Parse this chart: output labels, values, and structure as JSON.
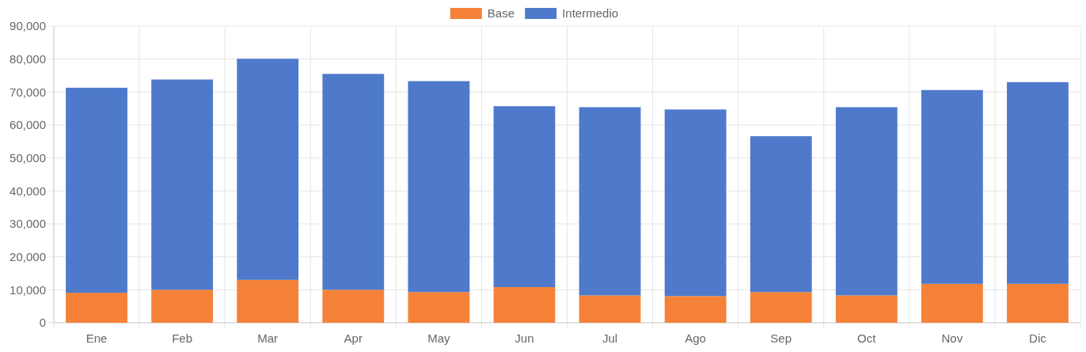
{
  "chart_data": {
    "type": "bar",
    "stacked": true,
    "categories": [
      "Ene",
      "Feb",
      "Mar",
      "Apr",
      "May",
      "Jun",
      "Jul",
      "Ago",
      "Sep",
      "Oct",
      "Nov",
      "Dic"
    ],
    "series": [
      {
        "name": "Base",
        "color": "#f58238",
        "values": [
          9100,
          10000,
          13000,
          10000,
          9300,
          10800,
          8300,
          8100,
          9300,
          8300,
          11800,
          11800
        ]
      },
      {
        "name": "Intermedio",
        "color": "#4f7acb",
        "values": [
          62200,
          63800,
          67100,
          65500,
          64000,
          54900,
          57100,
          56600,
          47300,
          57100,
          58800,
          61200
        ]
      }
    ],
    "ylim": [
      0,
      90000
    ],
    "yticks": [
      {
        "value": 0,
        "label": "0"
      },
      {
        "value": 10000,
        "label": "10,000"
      },
      {
        "value": 20000,
        "label": "20,000"
      },
      {
        "value": 30000,
        "label": "30,000"
      },
      {
        "value": 40000,
        "label": "40,000"
      },
      {
        "value": 50000,
        "label": "50,000"
      },
      {
        "value": 60000,
        "label": "60,000"
      },
      {
        "value": 70000,
        "label": "70,000"
      },
      {
        "value": 80000,
        "label": "80,000"
      },
      {
        "value": 90000,
        "label": "90,000"
      }
    ],
    "grid": true,
    "legend": "top"
  }
}
